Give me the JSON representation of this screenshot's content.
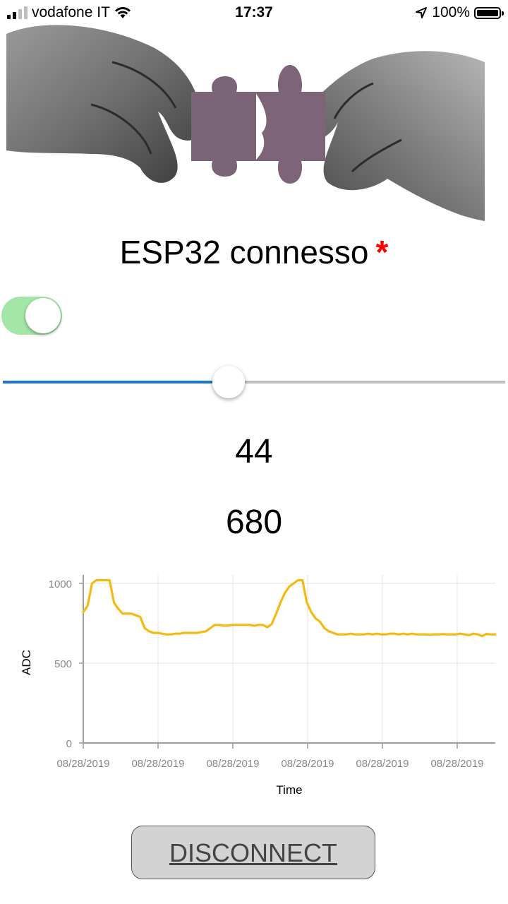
{
  "status_bar": {
    "carrier": "vodafone IT",
    "time": "17:37",
    "battery": "100%"
  },
  "header": {
    "title": "ESP32 connesso",
    "asterisk": "*",
    "asterisk_color": "#ff0000"
  },
  "controls": {
    "toggle_on": true,
    "toggle_color": "#a3e6a7",
    "slider_fraction": 0.45,
    "slider_color": "#1976d2"
  },
  "readings": {
    "slider_value": "44",
    "adc_value": "680"
  },
  "chart_data": {
    "type": "line",
    "title": "",
    "xlabel": "Time",
    "ylabel": "ADC",
    "ylim": [
      0,
      1000
    ],
    "yticks": [
      "0",
      "500",
      "1000"
    ],
    "xticks": [
      "08/28/2019",
      "08/28/2019",
      "08/28/2019",
      "08/28/2019",
      "08/28/2019",
      "08/28/2019"
    ],
    "grid": true,
    "line_color": "#f5b914",
    "series": [
      {
        "values": [
          820,
          860,
          1000,
          1020,
          1020,
          1020,
          1020,
          880,
          840,
          810,
          810,
          810,
          800,
          790,
          720,
          700,
          690,
          690,
          685,
          680,
          680,
          685,
          685,
          690,
          690,
          690,
          690,
          695,
          700,
          720,
          740,
          740,
          735,
          735,
          740,
          740,
          740,
          740,
          740,
          735,
          740,
          740,
          725,
          745,
          810,
          880,
          940,
          980,
          1000,
          1020,
          1020,
          880,
          820,
          780,
          760,
          720,
          700,
          690,
          680,
          680,
          680,
          685,
          680,
          680,
          680,
          685,
          680,
          685,
          680,
          680,
          685,
          685,
          680,
          685,
          680,
          685,
          680,
          680,
          680,
          678,
          680,
          680,
          682,
          680,
          680,
          680,
          685,
          680,
          675,
          685,
          680,
          670,
          683,
          680,
          680
        ]
      }
    ]
  },
  "footer": {
    "disconnect_label": "DISCONNECT"
  }
}
